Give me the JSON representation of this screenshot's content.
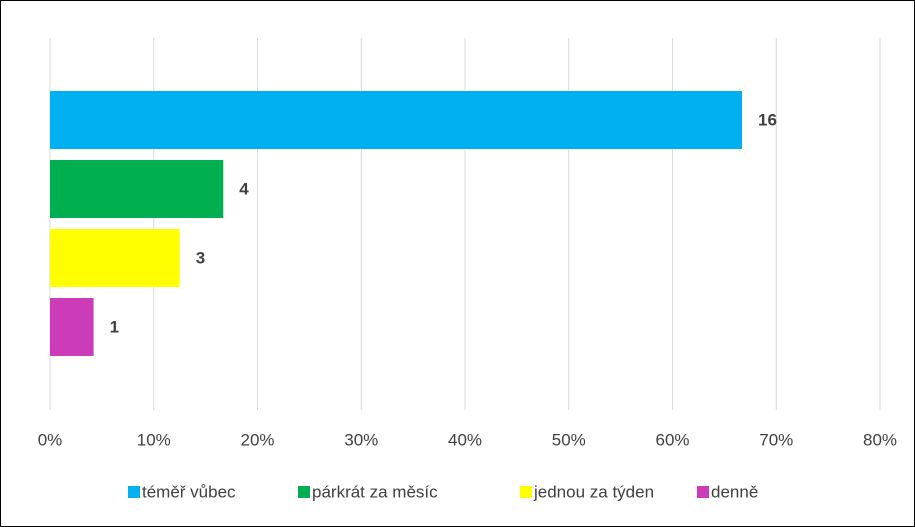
{
  "chart_data": {
    "type": "bar",
    "orientation": "horizontal",
    "series": [
      {
        "name": "téměř vůbec",
        "color": "#00b0f0",
        "values": [
          66.7
        ],
        "counts": [
          16
        ]
      },
      {
        "name": "párkrát za měsíc",
        "color": "#00b050",
        "values": [
          16.7
        ],
        "counts": [
          4
        ]
      },
      {
        "name": "jednou za týden",
        "color": "#ffff00",
        "values": [
          12.5
        ],
        "counts": [
          3
        ]
      },
      {
        "name": "denně",
        "color": "#cc3cb8",
        "values": [
          4.2
        ],
        "counts": [
          1
        ]
      }
    ],
    "xlim": [
      0,
      80
    ],
    "xticks": [
      {
        "value": 0,
        "label": "0%"
      },
      {
        "value": 10,
        "label": "10%"
      },
      {
        "value": 20,
        "label": "20%"
      },
      {
        "value": 30,
        "label": "30%"
      },
      {
        "value": 40,
        "label": "40%"
      },
      {
        "value": 50,
        "label": "50%"
      },
      {
        "value": 60,
        "label": "60%"
      },
      {
        "value": 70,
        "label": "70%"
      },
      {
        "value": 80,
        "label": "80%"
      }
    ],
    "grid": true,
    "legend": "bottom"
  }
}
